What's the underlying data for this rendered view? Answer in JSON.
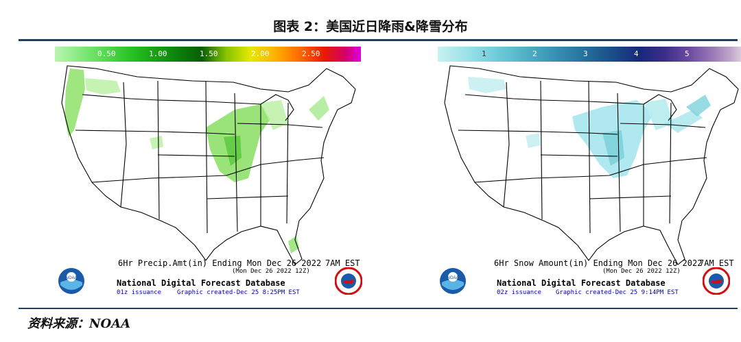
{
  "title": "图表 2：美国近日降雨&降雪分布",
  "source": "资料来源：NOAA",
  "panels": [
    {
      "legend_ticks": [
        "0.50",
        "1.00",
        "1.50",
        "2.00",
        "2.50"
      ],
      "caption_main": "6Hr Precip.Amt(in) Ending Mon Dec 26 2022",
      "caption_time": "7AM EST",
      "caption_sub": "(Mon Dec 26 2022 12Z)",
      "database": "National Digital Forecast Database",
      "issuance": "01z issuance",
      "created": "Graphic created-Dec 25  8:25PM EST",
      "logo_left": "NOAA",
      "colorbar": [
        "#b8f5b0",
        "#6fe36a",
        "#27c222",
        "#0e8a0c",
        "#075e06",
        "#86c400",
        "#e7e700",
        "#ffb000",
        "#ff6a00",
        "#e61a00",
        "#d4006a",
        "#e000e0"
      ]
    },
    {
      "legend_ticks": [
        "1",
        "2",
        "3",
        "4",
        "5"
      ],
      "caption_main": "6Hr Snow Amount(in) Ending Mon Dec 26 2022",
      "caption_time": "7AM EST",
      "caption_sub": "(Mon Dec 26 2022 12Z)",
      "database": "National Digital Forecast Database",
      "issuance": "02z issuance",
      "created": "Graphic created-Dec 25  9:14PM EST",
      "logo_left": "NOAA",
      "colorbar": [
        "#c8f2f2",
        "#8fdde6",
        "#5fbfd0",
        "#3c9ab8",
        "#24709c",
        "#1a4a86",
        "#17287a",
        "#3a2d8a",
        "#6a4aa0",
        "#9b7bb8",
        "#c3a8cc",
        "#e2d6e2"
      ]
    }
  ],
  "colors": {
    "rule": "#1f3d6b",
    "rain": "#8ee06a",
    "rain_dark": "#56c83a",
    "snow": "#a6e6ec",
    "snow_dark": "#7fd2dc"
  }
}
